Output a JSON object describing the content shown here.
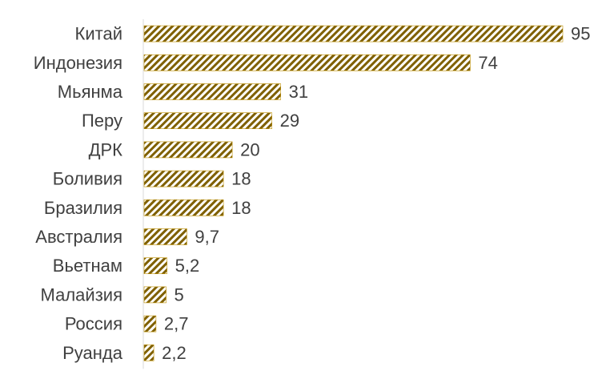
{
  "chart_data": {
    "type": "bar",
    "orientation": "horizontal",
    "categories": [
      "Китай",
      "Индонезия",
      "Мьянма",
      "Перу",
      "ДРК",
      "Боливия",
      "Бразилия",
      "Австралия",
      "Вьетнам",
      "Малайзия",
      "Россия",
      "Руанда"
    ],
    "values": [
      95,
      74,
      31,
      29,
      20,
      18,
      18,
      9.7,
      5.2,
      5,
      2.7,
      2.2
    ],
    "value_labels": [
      "95",
      "74",
      "31",
      "29",
      "20",
      "18",
      "18",
      "9,7",
      "5,2",
      "5",
      "2,7",
      "2,2"
    ],
    "title": "",
    "xlabel": "",
    "ylabel": "",
    "xlim": [
      0,
      95
    ],
    "grid": false,
    "legend": "none",
    "colors": {
      "bar_fill": "#ffffff",
      "bar_hatch": "#7f6000",
      "bar_border": "#bf9000",
      "axis": "#d9d9d9",
      "text": "#404040"
    }
  }
}
